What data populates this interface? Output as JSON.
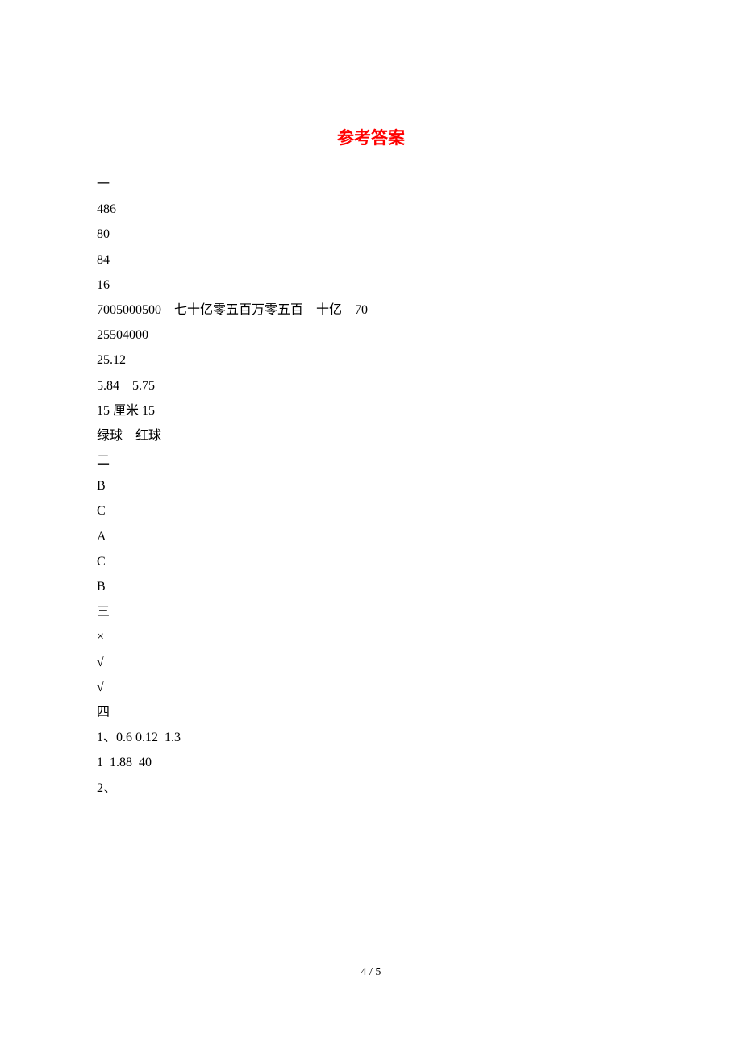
{
  "title": "参考答案",
  "title_color": "#ff0000",
  "title_fontsize": 21,
  "body_fontsize": 16,
  "body_color": "#000000",
  "background_color": "#ffffff",
  "line_height": 1.95,
  "lines": {
    "l0": "一",
    "l1": "486",
    "l2": "80",
    "l3": "84",
    "l4": "16",
    "l5": "7005000500    七十亿零五百万零五百    十亿    70",
    "l6": "25504000",
    "l7": "25.12",
    "l8": "5.84    5.75",
    "l9": "15 厘米 15",
    "l10": "绿球    红球",
    "l11": "二",
    "l12": "B",
    "l13": "C",
    "l14": "A",
    "l15": "C",
    "l16": "B",
    "l17": "三",
    "l18": "×",
    "l19": "√",
    "l20": "√",
    "l21": "四",
    "l22": "1、0.6 0.12  1.3",
    "l23": "1  1.88  40",
    "l24": "2、"
  },
  "page_number": "4 / 5"
}
